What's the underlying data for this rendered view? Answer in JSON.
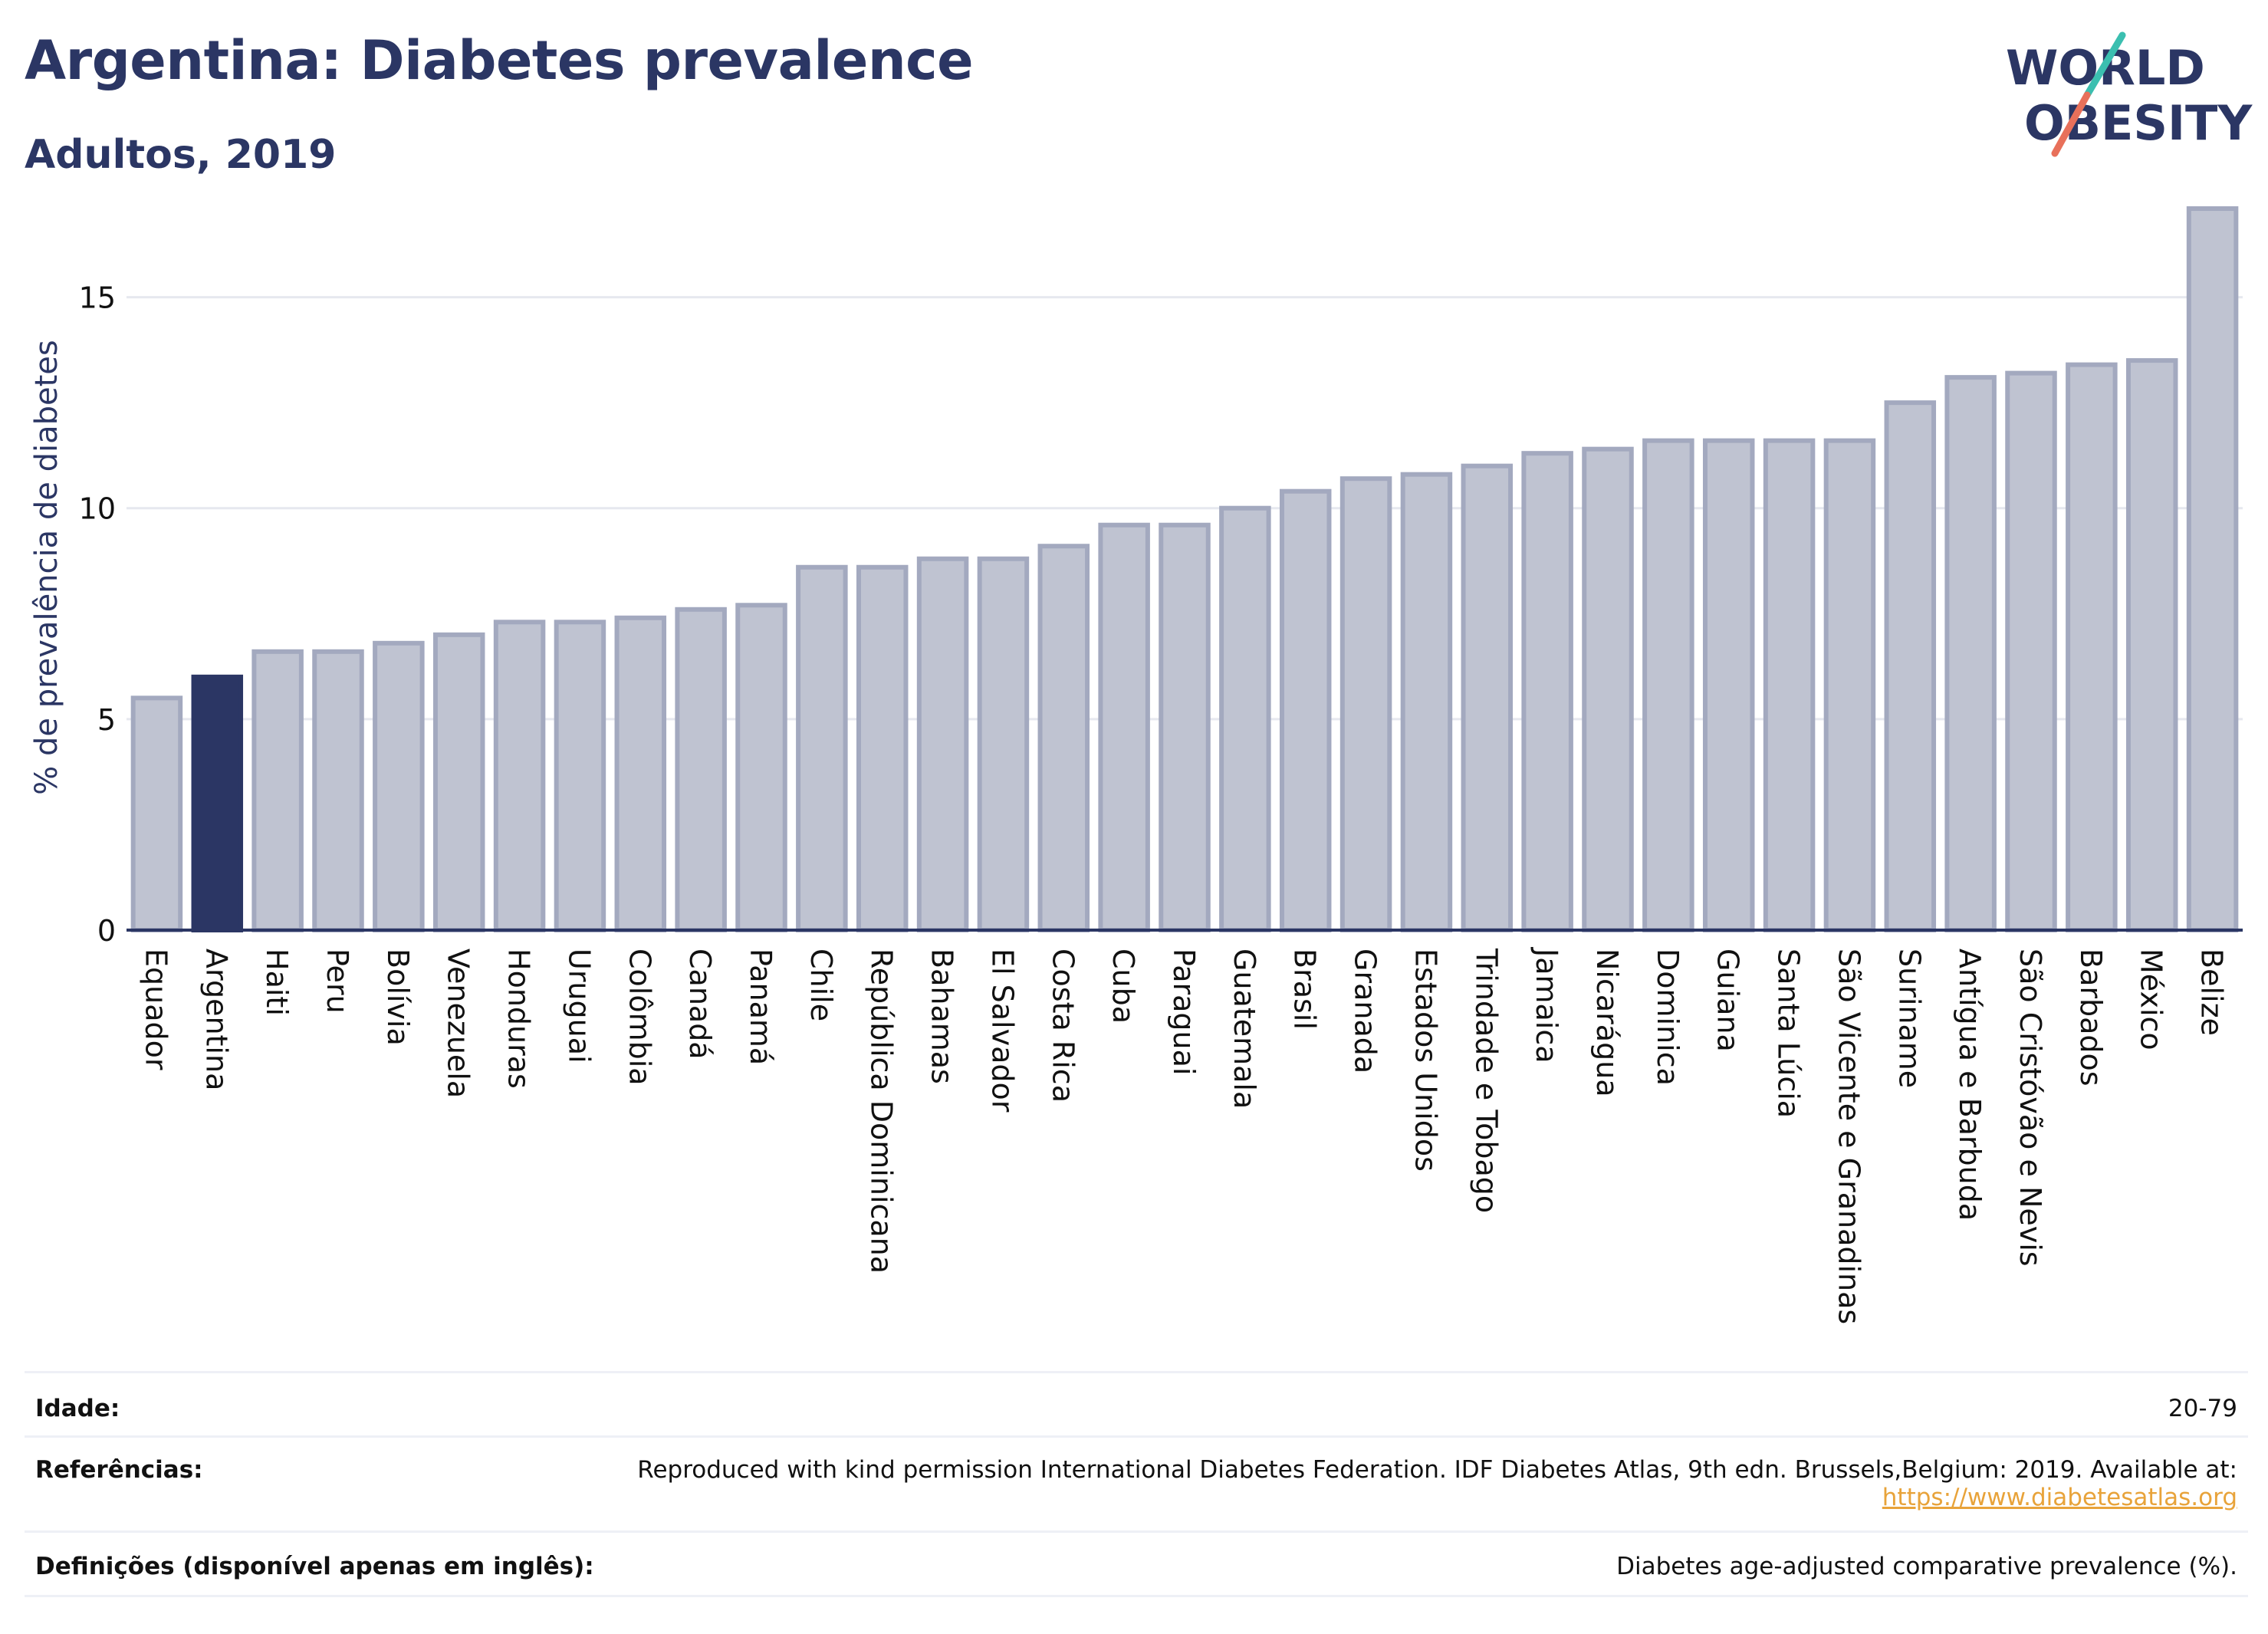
{
  "header": {
    "title": "Argentina: Diabetes prevalence",
    "subtitle": "Adultos, 2019"
  },
  "logo": {
    "line1": "WORLD",
    "line2": "OBESITY"
  },
  "chart_data": {
    "type": "bar",
    "ylabel": "% de prevalência de diabetes",
    "ylim": [
      0,
      17.5
    ],
    "yticks": [
      0,
      5,
      10,
      15
    ],
    "grid": true,
    "highlight": "Argentina",
    "colors": {
      "bar": "#bfc3d1",
      "bar_edge": "#a3a9bf",
      "highlight": "#2b3664",
      "axis": "#2b3664",
      "grid": "#e6e8ef"
    },
    "categories": [
      "Equador",
      "Argentina",
      "Haiti",
      "Peru",
      "Bolívia",
      "Venezuela",
      "Honduras",
      "Uruguai",
      "Colômbia",
      "Canadá",
      "Panamá",
      "Chile",
      "República Dominicana",
      "Bahamas",
      "El Salvador",
      "Costa Rica",
      "Cuba",
      "Paraguai",
      "Guatemala",
      "Brasil",
      "Granada",
      "Estados Unidos",
      "Trindade e Tobago",
      "Jamaica",
      "Nicarágua",
      "Dominica",
      "Guiana",
      "Santa Lúcia",
      "São Vicente e Granadinas",
      "Suriname",
      "Antígua e Barbuda",
      "São Cristóvão e Nevis",
      "Barbados",
      "México",
      "Belize"
    ],
    "values": [
      5.5,
      6.0,
      6.6,
      6.6,
      6.8,
      7.0,
      7.3,
      7.3,
      7.4,
      7.6,
      7.7,
      8.6,
      8.6,
      8.8,
      8.8,
      9.1,
      9.6,
      9.6,
      10.0,
      10.4,
      10.7,
      10.8,
      11.0,
      11.3,
      11.4,
      11.6,
      11.6,
      11.6,
      11.6,
      12.5,
      13.1,
      13.2,
      13.4,
      13.5,
      17.1
    ]
  },
  "meta": {
    "age_label": "Idade:",
    "age_value": "20-79",
    "refs_label": "Referências:",
    "refs_value": "Reproduced with kind permission International Diabetes Federation. IDF Diabetes Atlas, 9th edn. Brussels,Belgium: 2019. Available at:",
    "refs_link": "https://www.diabetesatlas.org",
    "defs_label": "Definições (disponível apenas em inglês):",
    "defs_value": "Diabetes age-adjusted comparative prevalence (%)."
  }
}
